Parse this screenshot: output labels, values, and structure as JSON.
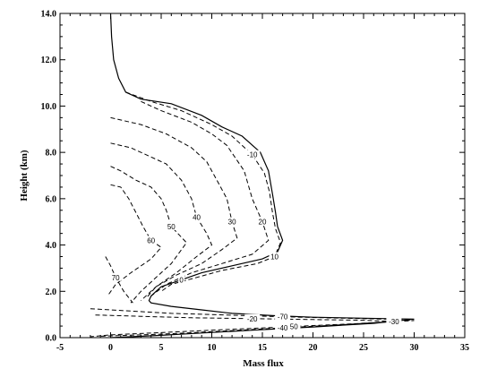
{
  "chart_data": {
    "type": "line",
    "title": "",
    "xlabel": "Mass flux",
    "ylabel": "Height (km)",
    "xlim": [
      -5,
      35
    ],
    "ylim": [
      0,
      14
    ],
    "xticks": [
      "-5",
      "0",
      "5",
      "10",
      "15",
      "20",
      "25",
      "30",
      "35"
    ],
    "yticks": [
      "0.0",
      "2.0",
      "4.0",
      "6.0",
      "8.0",
      "10.0",
      "12.0",
      "14.0"
    ],
    "series": [
      {
        "style": "solid",
        "labels": [
          "0"
        ],
        "x": [
          0,
          0.1,
          0.3,
          0.8,
          1.5,
          3,
          6,
          9,
          11,
          13,
          14.8,
          15.6,
          16,
          16.3,
          16.5,
          17,
          16.5,
          15,
          12,
          9,
          7,
          5,
          4.5,
          4,
          3.8,
          4,
          6,
          9,
          12,
          16,
          20,
          25,
          30,
          26,
          20,
          14,
          9,
          5,
          2,
          0.5,
          0
        ],
        "y": [
          14,
          13,
          12,
          11.2,
          10.6,
          10.3,
          10.1,
          9.6,
          9.1,
          8.7,
          8,
          7.2,
          6.2,
          5.4,
          4.8,
          4.2,
          3.7,
          3.4,
          3.1,
          2.8,
          2.5,
          2.2,
          2,
          1.8,
          1.6,
          1.5,
          1.35,
          1.2,
          1.05,
          0.95,
          0.88,
          0.84,
          0.8,
          0.62,
          0.46,
          0.32,
          0.2,
          0.1,
          0.04,
          0.01,
          0
        ]
      },
      {
        "style": "dashed",
        "labels": [
          "-10",
          "10"
        ],
        "x": [
          1.5,
          4,
          7,
          10,
          12,
          14,
          15.2,
          15.7,
          16,
          16.3,
          16.8,
          16.2,
          14.5,
          11,
          8.5,
          6,
          5
        ],
        "y": [
          10.6,
          10.2,
          9.8,
          9.2,
          8.7,
          7.9,
          7.1,
          6.3,
          5.4,
          4.7,
          4.1,
          3.5,
          3.2,
          2.9,
          2.6,
          2.3,
          2
        ]
      },
      {
        "style": "dashed",
        "labels": [
          "20"
        ],
        "x": [
          3,
          5,
          8,
          10,
          11.5,
          13.2,
          14,
          15,
          15.6,
          14,
          11,
          8,
          5.5,
          4
        ],
        "y": [
          10.2,
          9.8,
          9.3,
          8.8,
          8.3,
          7.2,
          6,
          5,
          4.2,
          3.6,
          3.2,
          2.8,
          2.3,
          1.8
        ]
      },
      {
        "style": "dashed",
        "labels": [
          "30"
        ],
        "x": [
          0,
          3,
          5.5,
          8,
          9.5,
          10.5,
          11.5,
          12,
          12.5,
          11,
          9,
          6.5,
          4.5,
          3.5
        ],
        "y": [
          9.5,
          9.2,
          8.8,
          8.2,
          7.6,
          6.8,
          6,
          5,
          4.3,
          3.8,
          3.2,
          2.7,
          2.2,
          1.7
        ]
      },
      {
        "style": "dashed",
        "labels": [
          "40"
        ],
        "x": [
          0,
          2,
          4,
          5.5,
          7,
          8,
          8.5,
          9.5,
          10,
          8.5,
          6.5,
          4.5,
          3
        ],
        "y": [
          8.4,
          8.2,
          7.8,
          7.5,
          6.8,
          6,
          5.2,
          4.5,
          4,
          3.5,
          2.8,
          2.2,
          1.6
        ]
      },
      {
        "style": "dashed",
        "labels": [
          "50"
        ],
        "x": [
          0,
          1,
          2.5,
          4,
          5,
          5.5,
          6,
          7.5,
          6,
          4.5,
          3,
          2
        ],
        "y": [
          7.4,
          7.2,
          6.8,
          6.5,
          6,
          5.5,
          4.8,
          4.1,
          3.2,
          2.6,
          2,
          1.5
        ]
      },
      {
        "style": "dashed",
        "labels": [
          "60"
        ],
        "x": [
          0,
          1,
          1.8,
          2.5,
          3.2,
          4,
          5,
          4,
          2,
          0.5,
          -0.3
        ],
        "y": [
          6.6,
          6.5,
          6,
          5.4,
          4.8,
          4.2,
          3.9,
          3.4,
          2.8,
          2.3,
          1.8
        ]
      },
      {
        "style": "dashed",
        "labels": [
          "70"
        ],
        "x": [
          -0.5,
          0,
          0.5,
          1.3,
          2.2
        ],
        "y": [
          3.5,
          3.1,
          2.6,
          2,
          1.5
        ]
      },
      {
        "style": "dashed",
        "labels": [
          "-70",
          "-50"
        ],
        "x": [
          -2,
          2,
          6,
          12,
          17,
          22,
          27,
          30,
          24,
          18,
          12,
          6,
          0,
          -2
        ],
        "y": [
          1.25,
          1.15,
          1.05,
          0.97,
          0.9,
          0.85,
          0.8,
          0.74,
          0.6,
          0.48,
          0.36,
          0.24,
          0.12,
          0.04
        ]
      },
      {
        "style": "dashed",
        "labels": [
          "-20",
          "-30",
          "-40"
        ],
        "x": [
          -1.5,
          3,
          8,
          14,
          20,
          25,
          28,
          23,
          17,
          11,
          5,
          -1
        ],
        "y": [
          0.98,
          0.92,
          0.86,
          0.82,
          0.78,
          0.75,
          0.7,
          0.56,
          0.42,
          0.28,
          0.15,
          0.06
        ]
      }
    ],
    "labels_all": [
      "0",
      "-10",
      "10",
      "20",
      "30",
      "40",
      "50",
      "60",
      "70",
      "-70",
      "-50",
      "-20",
      "-30",
      "-40"
    ]
  }
}
